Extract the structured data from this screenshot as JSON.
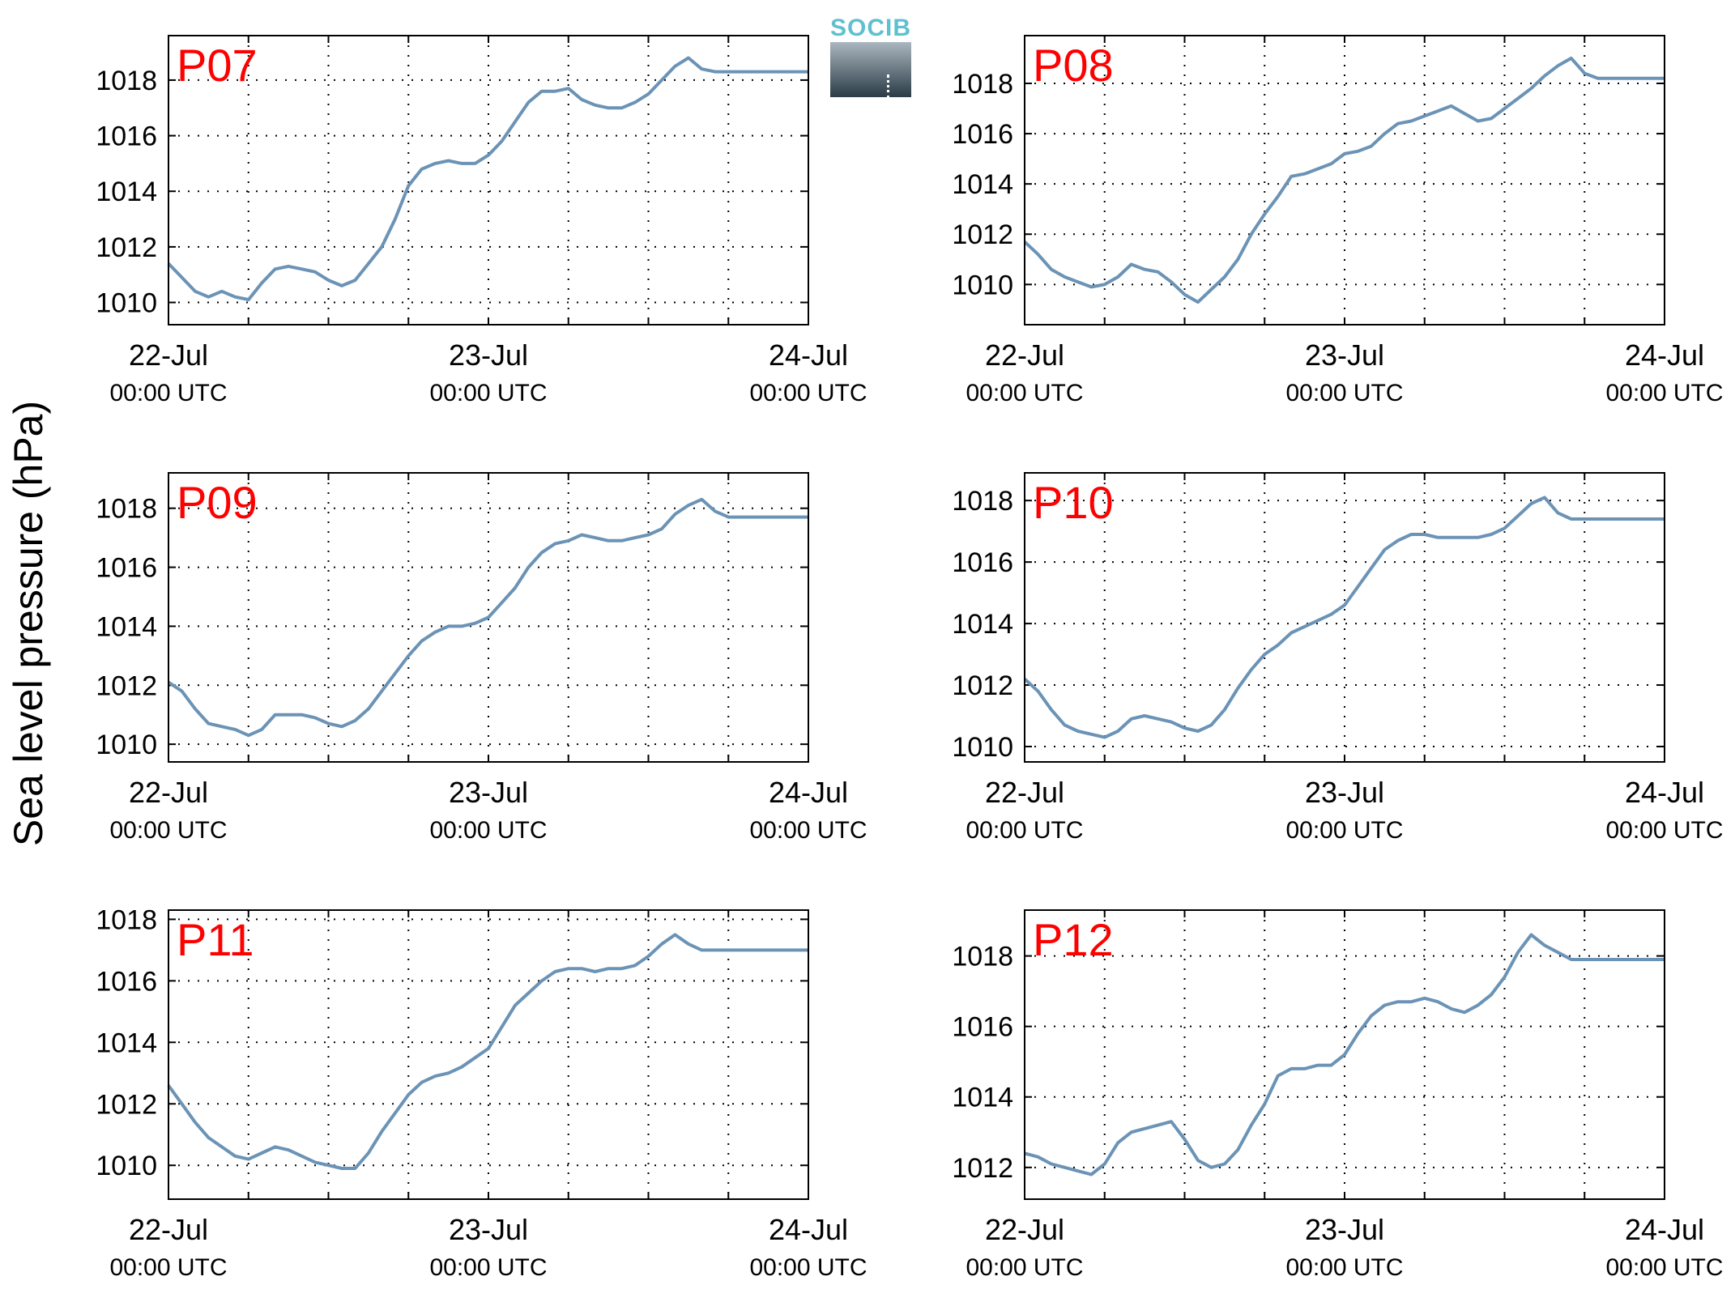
{
  "ylabel": "Sea level pressure (hPa)",
  "logo": {
    "text": "SOCIB",
    "color": "#5fc0cf"
  },
  "colors": {
    "line": "#6b93b6",
    "panel_label": "#ff0000",
    "axis": "#000000",
    "grid": "#000000"
  },
  "chart_data": [
    {
      "type": "line",
      "label": "P07",
      "grid": true,
      "ylim": [
        1009.2,
        1019.6
      ],
      "yticks": [
        1010,
        1012,
        1014,
        1016,
        1018
      ],
      "xlim": [
        0,
        48
      ],
      "xtick_labels": [
        {
          "date": "22-Jul",
          "time": "00:00 UTC"
        },
        {
          "date": "23-Jul",
          "time": "00:00 UTC"
        },
        {
          "date": "24-Jul",
          "time": "00:00 UTC"
        }
      ],
      "series": [
        {
          "x": [
            0,
            1,
            2,
            3,
            4,
            5,
            6,
            7,
            8,
            9,
            10,
            11,
            12,
            13,
            14,
            15,
            16,
            17,
            18,
            19,
            20,
            21,
            22,
            23,
            24,
            25,
            26,
            27,
            28,
            29,
            30,
            31,
            32,
            33,
            34,
            35,
            36,
            37,
            38,
            39,
            40,
            41,
            42,
            43,
            44,
            45,
            46,
            47,
            48
          ],
          "y": [
            1011.4,
            1010.9,
            1010.4,
            1010.2,
            1010.4,
            1010.2,
            1010.1,
            1010.7,
            1011.2,
            1011.3,
            1011.2,
            1011.1,
            1010.8,
            1010.6,
            1010.8,
            1011.4,
            1012.0,
            1013.0,
            1014.2,
            1014.8,
            1015.0,
            1015.1,
            1015.0,
            1015.0,
            1015.3,
            1015.8,
            1016.5,
            1017.2,
            1017.6,
            1017.6,
            1017.7,
            1017.3,
            1017.1,
            1017.0,
            1017.0,
            1017.2,
            1017.5,
            1018.0,
            1018.5,
            1018.8,
            1018.4,
            1018.3,
            1018.3,
            1018.3,
            1018.3,
            1018.3,
            1018.3,
            1018.3,
            1018.3
          ]
        }
      ]
    },
    {
      "type": "line",
      "label": "P08",
      "grid": true,
      "ylim": [
        1008.4,
        1019.9
      ],
      "yticks": [
        1010,
        1012,
        1014,
        1016,
        1018
      ],
      "xlim": [
        0,
        48
      ],
      "xtick_labels": [
        {
          "date": "22-Jul",
          "time": "00:00 UTC"
        },
        {
          "date": "23-Jul",
          "time": "00:00 UTC"
        },
        {
          "date": "24-Jul",
          "time": "00:00 UTC"
        }
      ],
      "series": [
        {
          "x": [
            0,
            1,
            2,
            3,
            4,
            5,
            6,
            7,
            8,
            9,
            10,
            11,
            12,
            13,
            14,
            15,
            16,
            17,
            18,
            19,
            20,
            21,
            22,
            23,
            24,
            25,
            26,
            27,
            28,
            29,
            30,
            31,
            32,
            33,
            34,
            35,
            36,
            37,
            38,
            39,
            40,
            41,
            42,
            43,
            44,
            45,
            46,
            47,
            48
          ],
          "y": [
            1011.7,
            1011.2,
            1010.6,
            1010.3,
            1010.1,
            1009.9,
            1010.0,
            1010.3,
            1010.8,
            1010.6,
            1010.5,
            1010.1,
            1009.6,
            1009.3,
            1009.8,
            1010.3,
            1011.0,
            1012.0,
            1012.8,
            1013.5,
            1014.3,
            1014.4,
            1014.6,
            1014.8,
            1015.2,
            1015.3,
            1015.5,
            1016.0,
            1016.4,
            1016.5,
            1016.7,
            1016.9,
            1017.1,
            1016.8,
            1016.5,
            1016.6,
            1017.0,
            1017.4,
            1017.8,
            1018.3,
            1018.7,
            1019.0,
            1018.4,
            1018.2,
            1018.2,
            1018.2,
            1018.2,
            1018.2,
            1018.2
          ]
        }
      ]
    },
    {
      "type": "line",
      "label": "P09",
      "grid": true,
      "ylim": [
        1009.4,
        1019.2
      ],
      "yticks": [
        1010,
        1012,
        1014,
        1016,
        1018
      ],
      "xlim": [
        0,
        48
      ],
      "xtick_labels": [
        {
          "date": "22-Jul",
          "time": "00:00 UTC"
        },
        {
          "date": "23-Jul",
          "time": "00:00 UTC"
        },
        {
          "date": "24-Jul",
          "time": "00:00 UTC"
        }
      ],
      "series": [
        {
          "x": [
            0,
            1,
            2,
            3,
            4,
            5,
            6,
            7,
            8,
            9,
            10,
            11,
            12,
            13,
            14,
            15,
            16,
            17,
            18,
            19,
            20,
            21,
            22,
            23,
            24,
            25,
            26,
            27,
            28,
            29,
            30,
            31,
            32,
            33,
            34,
            35,
            36,
            37,
            38,
            39,
            40,
            41,
            42,
            43,
            44,
            45,
            46,
            47,
            48
          ],
          "y": [
            1012.1,
            1011.8,
            1011.2,
            1010.7,
            1010.6,
            1010.5,
            1010.3,
            1010.5,
            1011.0,
            1011.0,
            1011.0,
            1010.9,
            1010.7,
            1010.6,
            1010.8,
            1011.2,
            1011.8,
            1012.4,
            1013.0,
            1013.5,
            1013.8,
            1014.0,
            1014.0,
            1014.1,
            1014.3,
            1014.8,
            1015.3,
            1016.0,
            1016.5,
            1016.8,
            1016.9,
            1017.1,
            1017.0,
            1016.9,
            1016.9,
            1017.0,
            1017.1,
            1017.3,
            1017.8,
            1018.1,
            1018.3,
            1017.9,
            1017.7,
            1017.7,
            1017.7,
            1017.7,
            1017.7,
            1017.7,
            1017.7
          ]
        }
      ]
    },
    {
      "type": "line",
      "label": "P10",
      "grid": true,
      "ylim": [
        1009.5,
        1018.9
      ],
      "yticks": [
        1010,
        1012,
        1014,
        1016,
        1018
      ],
      "xlim": [
        0,
        48
      ],
      "xtick_labels": [
        {
          "date": "22-Jul",
          "time": "00:00 UTC"
        },
        {
          "date": "23-Jul",
          "time": "00:00 UTC"
        },
        {
          "date": "24-Jul",
          "time": "00:00 UTC"
        }
      ],
      "series": [
        {
          "x": [
            0,
            1,
            2,
            3,
            4,
            5,
            6,
            7,
            8,
            9,
            10,
            11,
            12,
            13,
            14,
            15,
            16,
            17,
            18,
            19,
            20,
            21,
            22,
            23,
            24,
            25,
            26,
            27,
            28,
            29,
            30,
            31,
            32,
            33,
            34,
            35,
            36,
            37,
            38,
            39,
            40,
            41,
            42,
            43,
            44,
            45,
            46,
            47,
            48
          ],
          "y": [
            1012.2,
            1011.8,
            1011.2,
            1010.7,
            1010.5,
            1010.4,
            1010.3,
            1010.5,
            1010.9,
            1011.0,
            1010.9,
            1010.8,
            1010.6,
            1010.5,
            1010.7,
            1011.2,
            1011.9,
            1012.5,
            1013.0,
            1013.3,
            1013.7,
            1013.9,
            1014.1,
            1014.3,
            1014.6,
            1015.2,
            1015.8,
            1016.4,
            1016.7,
            1016.9,
            1016.9,
            1016.8,
            1016.8,
            1016.8,
            1016.8,
            1016.9,
            1017.1,
            1017.5,
            1017.9,
            1018.1,
            1017.6,
            1017.4,
            1017.4,
            1017.4,
            1017.4,
            1017.4,
            1017.4,
            1017.4,
            1017.4
          ]
        }
      ]
    },
    {
      "type": "line",
      "label": "P11",
      "grid": true,
      "ylim": [
        1008.9,
        1018.3
      ],
      "yticks": [
        1010,
        1012,
        1014,
        1016,
        1018
      ],
      "xlim": [
        0,
        48
      ],
      "xtick_labels": [
        {
          "date": "22-Jul",
          "time": "00:00 UTC"
        },
        {
          "date": "23-Jul",
          "time": "00:00 UTC"
        },
        {
          "date": "24-Jul",
          "time": "00:00 UTC"
        }
      ],
      "series": [
        {
          "x": [
            0,
            1,
            2,
            3,
            4,
            5,
            6,
            7,
            8,
            9,
            10,
            11,
            12,
            13,
            14,
            15,
            16,
            17,
            18,
            19,
            20,
            21,
            22,
            23,
            24,
            25,
            26,
            27,
            28,
            29,
            30,
            31,
            32,
            33,
            34,
            35,
            36,
            37,
            38,
            39,
            40,
            41,
            42,
            43,
            44,
            45,
            46,
            47,
            48
          ],
          "y": [
            1012.6,
            1012.0,
            1011.4,
            1010.9,
            1010.6,
            1010.3,
            1010.2,
            1010.4,
            1010.6,
            1010.5,
            1010.3,
            1010.1,
            1010.0,
            1009.9,
            1009.9,
            1010.4,
            1011.1,
            1011.7,
            1012.3,
            1012.7,
            1012.9,
            1013.0,
            1013.2,
            1013.5,
            1013.8,
            1014.5,
            1015.2,
            1015.6,
            1016.0,
            1016.3,
            1016.4,
            1016.4,
            1016.3,
            1016.4,
            1016.4,
            1016.5,
            1016.8,
            1017.2,
            1017.5,
            1017.2,
            1017.0,
            1017.0,
            1017.0,
            1017.0,
            1017.0,
            1017.0,
            1017.0,
            1017.0,
            1017.0
          ]
        }
      ]
    },
    {
      "type": "line",
      "label": "P12",
      "grid": true,
      "ylim": [
        1011.1,
        1019.3
      ],
      "yticks": [
        1012,
        1014,
        1016,
        1018
      ],
      "xlim": [
        0,
        48
      ],
      "xtick_labels": [
        {
          "date": "22-Jul",
          "time": "00:00 UTC"
        },
        {
          "date": "23-Jul",
          "time": "00:00 UTC"
        },
        {
          "date": "24-Jul",
          "time": "00:00 UTC"
        }
      ],
      "series": [
        {
          "x": [
            0,
            1,
            2,
            3,
            4,
            5,
            6,
            7,
            8,
            9,
            10,
            11,
            12,
            13,
            14,
            15,
            16,
            17,
            18,
            19,
            20,
            21,
            22,
            23,
            24,
            25,
            26,
            27,
            28,
            29,
            30,
            31,
            32,
            33,
            34,
            35,
            36,
            37,
            38,
            39,
            40,
            41,
            42,
            43,
            44,
            45,
            46,
            47,
            48
          ],
          "y": [
            1012.4,
            1012.3,
            1012.1,
            1012.0,
            1011.9,
            1011.8,
            1012.1,
            1012.7,
            1013.0,
            1013.1,
            1013.2,
            1013.3,
            1012.8,
            1012.2,
            1012.0,
            1012.1,
            1012.5,
            1013.2,
            1013.8,
            1014.6,
            1014.8,
            1014.8,
            1014.9,
            1014.9,
            1015.2,
            1015.8,
            1016.3,
            1016.6,
            1016.7,
            1016.7,
            1016.8,
            1016.7,
            1016.5,
            1016.4,
            1016.6,
            1016.9,
            1017.4,
            1018.1,
            1018.6,
            1018.3,
            1018.1,
            1017.9,
            1017.9,
            1017.9,
            1017.9,
            1017.9,
            1017.9,
            1017.9,
            1017.9
          ]
        }
      ]
    }
  ]
}
